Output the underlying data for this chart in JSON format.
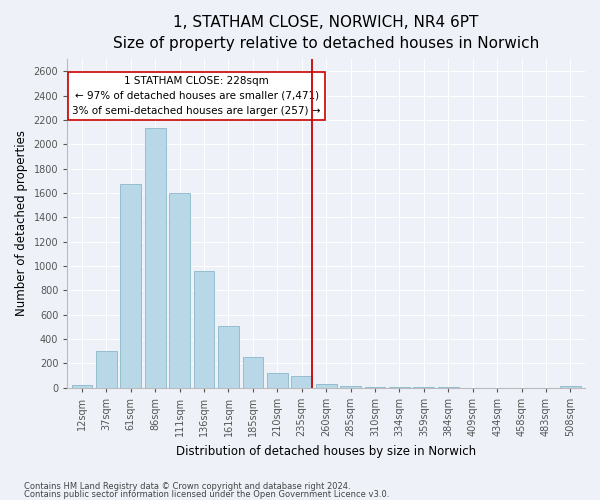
{
  "title": "1, STATHAM CLOSE, NORWICH, NR4 6PT",
  "subtitle": "Size of property relative to detached houses in Norwich",
  "xlabel": "Distribution of detached houses by size in Norwich",
  "ylabel": "Number of detached properties",
  "bar_labels": [
    "12sqm",
    "37sqm",
    "61sqm",
    "86sqm",
    "111sqm",
    "136sqm",
    "161sqm",
    "185sqm",
    "210sqm",
    "235sqm",
    "260sqm",
    "285sqm",
    "310sqm",
    "334sqm",
    "359sqm",
    "384sqm",
    "409sqm",
    "434sqm",
    "458sqm",
    "483sqm",
    "508sqm"
  ],
  "bar_values": [
    20,
    300,
    1670,
    2130,
    1600,
    960,
    505,
    255,
    120,
    95,
    30,
    15,
    5,
    5,
    3,
    3,
    2,
    2,
    2,
    2,
    15
  ],
  "bar_color": "#b8d8e8",
  "bar_edge_color": "#8ab8cc",
  "vline_x": 9.42,
  "vline_color": "#cc0000",
  "annotation_line1": "1 STATHAM CLOSE: 228sqm",
  "annotation_line2": "← 97% of detached houses are smaller (7,471)",
  "annotation_line3": "3% of semi-detached houses are larger (257) →",
  "annotation_box_color": "#ffffff",
  "annotation_box_edge": "#cc0000",
  "ylim": [
    0,
    2700
  ],
  "yticks": [
    0,
    200,
    400,
    600,
    800,
    1000,
    1200,
    1400,
    1600,
    1800,
    2000,
    2200,
    2400,
    2600
  ],
  "footnote1": "Contains HM Land Registry data © Crown copyright and database right 2024.",
  "footnote2": "Contains public sector information licensed under the Open Government Licence v3.0.",
  "background_color": "#eef2f8",
  "title_fontsize": 11,
  "subtitle_fontsize": 9,
  "tick_label_fontsize": 7,
  "axis_label_fontsize": 8.5,
  "annotation_fontsize": 7.5,
  "footnote_fontsize": 6
}
